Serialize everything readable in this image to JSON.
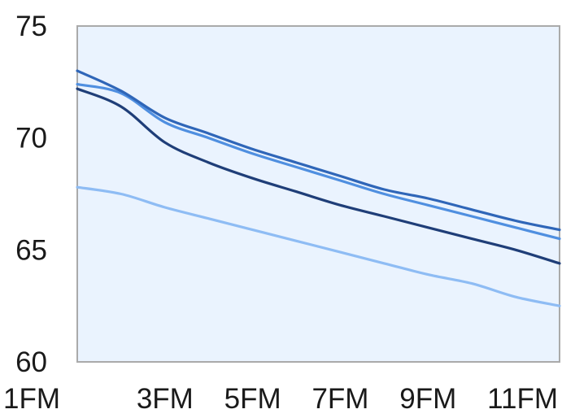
{
  "chart_data": {
    "type": "line",
    "title": "",
    "xlabel": "",
    "ylabel": "",
    "x": [
      1,
      2,
      3,
      4,
      5,
      6,
      7,
      8,
      9,
      10,
      11,
      12
    ],
    "x_tick_values": [
      1,
      3,
      5,
      7,
      9,
      11
    ],
    "x_tick_labels": [
      "1FM",
      "3FM",
      "5FM",
      "7FM",
      "9FM",
      "11FM"
    ],
    "ylim": [
      60,
      75
    ],
    "y_ticks": [
      60,
      65,
      70,
      75
    ],
    "y_tick_labels": [
      "60",
      "65",
      "70",
      "75"
    ],
    "grid": false,
    "legend": "none",
    "plot_background": "#eaf3fe",
    "frame_color": "#aaaaaa",
    "series": [
      {
        "color": "#2f66b8",
        "values": [
          73.0,
          72.1,
          70.9,
          70.2,
          69.5,
          68.9,
          68.3,
          67.7,
          67.3,
          66.8,
          66.3,
          65.9
        ]
      },
      {
        "color": "#4f8fe0",
        "values": [
          72.4,
          72.0,
          70.7,
          70.0,
          69.3,
          68.7,
          68.1,
          67.5,
          67.0,
          66.5,
          66.0,
          65.5
        ]
      },
      {
        "color": "#1f3e78",
        "values": [
          72.2,
          71.4,
          69.8,
          68.9,
          68.2,
          67.6,
          67.0,
          66.5,
          66.0,
          65.5,
          65.0,
          64.4
        ]
      },
      {
        "color": "#8ebcf4",
        "values": [
          67.8,
          67.5,
          66.9,
          66.4,
          65.9,
          65.4,
          64.9,
          64.4,
          63.9,
          63.5,
          62.9,
          62.5
        ]
      }
    ]
  }
}
